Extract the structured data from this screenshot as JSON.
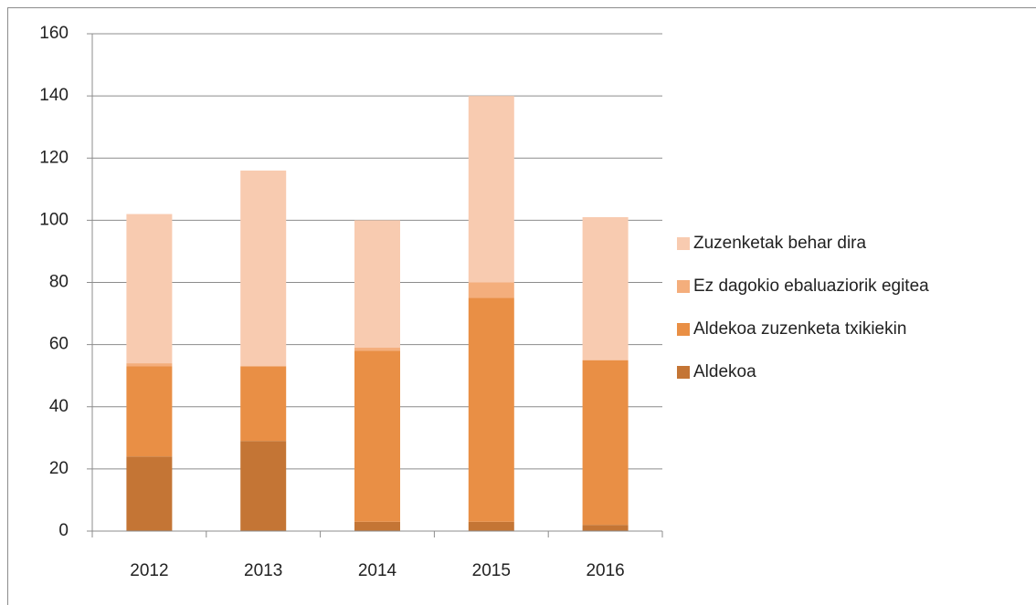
{
  "chart_data": {
    "type": "stacked_bar",
    "categories": [
      "2012",
      "2013",
      "2014",
      "2015",
      "2016"
    ],
    "series": [
      {
        "name": "Aldekoa",
        "color": "#c47535",
        "values": [
          24,
          29,
          3,
          3,
          2
        ]
      },
      {
        "name": "Aldekoa zuzenketa txikiekin",
        "color": "#e98f45",
        "values": [
          29,
          24,
          55,
          72,
          53
        ]
      },
      {
        "name": "Ez dagokio ebaluaziorik egitea",
        "color": "#f4ae7c",
        "values": [
          1,
          0,
          1,
          5,
          0
        ]
      },
      {
        "name": "Zuzenketak behar dira",
        "color": "#f8cbb0",
        "values": [
          48,
          63,
          41,
          60,
          46
        ]
      }
    ],
    "ylim": [
      0,
      160
    ],
    "yticks": [
      0,
      20,
      40,
      60,
      80,
      100,
      120,
      140,
      160
    ],
    "grid": true,
    "legend": "right"
  }
}
